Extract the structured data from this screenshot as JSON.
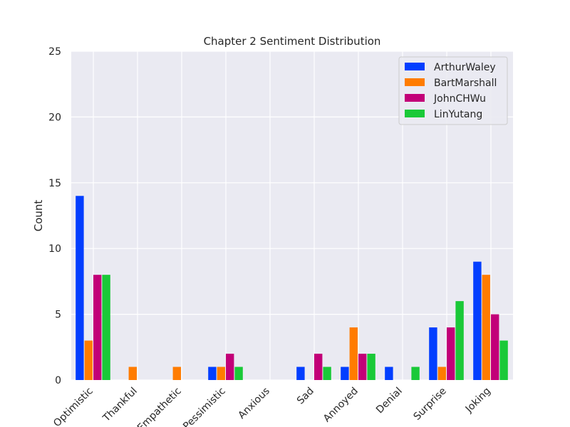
{
  "chart_data": {
    "type": "bar",
    "title": "Chapter 2 Sentiment Distribution",
    "xlabel": "",
    "ylabel": "Count",
    "ylim": [
      0,
      25
    ],
    "yticks": [
      0,
      5,
      10,
      15,
      20,
      25
    ],
    "grid": true,
    "legend_position": "top-right",
    "categories": [
      "Optimistic",
      "Thankful",
      "Empathetic",
      "Pessimistic",
      "Anxious",
      "Sad",
      "Annoyed",
      "Denial",
      "Surprise",
      "Joking"
    ],
    "series": [
      {
        "name": "ArthurWaley",
        "color": "#023eff",
        "values": [
          14,
          0,
          0,
          1,
          0,
          1,
          1,
          1,
          4,
          9
        ]
      },
      {
        "name": "BartMarshall",
        "color": "#ff7c00",
        "values": [
          3,
          1,
          1,
          1,
          0,
          0,
          4,
          0,
          1,
          8
        ]
      },
      {
        "name": "JohnCHWu",
        "color": "#c20078",
        "values": [
          8,
          0,
          0,
          2,
          0,
          2,
          2,
          0,
          4,
          5
        ]
      },
      {
        "name": "LinYutang",
        "color": "#1ac938",
        "values": [
          8,
          0,
          0,
          1,
          0,
          1,
          2,
          1,
          6,
          3
        ]
      }
    ]
  }
}
